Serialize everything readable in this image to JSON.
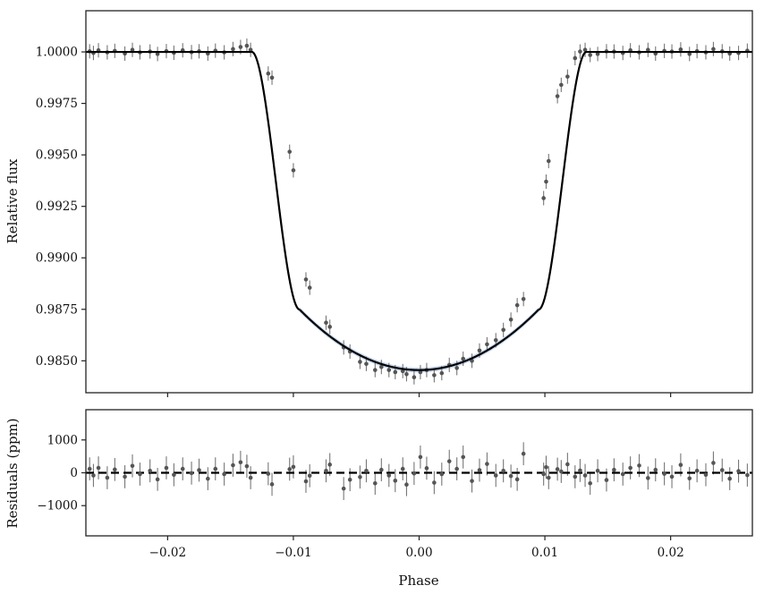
{
  "chart_data": [
    {
      "panel": "transit",
      "type": "line",
      "xlabel": "",
      "ylabel": "Relative flux",
      "xlim": [
        -0.0265,
        0.0265
      ],
      "ylim": [
        0.98345,
        1.002
      ],
      "xticks": [
        -0.02,
        -0.01,
        0.0,
        0.01,
        0.02
      ],
      "yticks": [
        0.985,
        0.9875,
        0.99,
        0.9925,
        0.995,
        0.9975,
        1.0
      ],
      "ytick_labels": [
        "0.9850",
        "0.9875",
        "0.9900",
        "0.9925",
        "0.9950",
        "0.9975",
        "1.0000"
      ],
      "grid": false,
      "model": {
        "transit_depth": 0.01545,
        "contact_1": 0.0133,
        "contact_2": 0.0095,
        "color": "#000000",
        "uncertainty_band_color": "#9db8e0"
      },
      "observations": {
        "color": "#555555",
        "typical_error": 0.00035,
        "x": [
          -0.0262,
          -0.0259,
          -0.0255,
          -0.0248,
          -0.0242,
          -0.0234,
          -0.0228,
          -0.0222,
          -0.0214,
          -0.0208,
          -0.0201,
          -0.0195,
          -0.0188,
          -0.0181,
          -0.0175,
          -0.0168,
          -0.0162,
          -0.0155,
          -0.0148,
          -0.0142,
          -0.0137,
          -0.0134,
          -0.012,
          -0.0117,
          -0.0103,
          -0.01,
          -0.009,
          -0.0087,
          -0.0074,
          -0.0071,
          -0.006,
          -0.0055,
          -0.0047,
          -0.0042,
          -0.0035,
          -0.003,
          -0.0024,
          -0.0019,
          -0.0013,
          -0.001,
          -0.0004,
          0.0001,
          0.0006,
          0.0012,
          0.0018,
          0.0024,
          0.003,
          0.0035,
          0.0042,
          0.0048,
          0.0054,
          0.0061,
          0.0067,
          0.0073,
          0.0078,
          0.0083,
          0.0099,
          0.0101,
          0.0103,
          0.011,
          0.0113,
          0.0118,
          0.0124,
          0.0128,
          0.0132,
          0.0136,
          0.0142,
          0.0149,
          0.0155,
          0.0162,
          0.0168,
          0.0175,
          0.0182,
          0.0188,
          0.0195,
          0.0201,
          0.0208,
          0.0215,
          0.0221,
          0.0228,
          0.0234,
          0.0241,
          0.0247,
          0.0254,
          0.0261
        ],
        "y": [
          1.00003,
          0.99995,
          1.00008,
          0.99998,
          1.00005,
          0.99992,
          1.0001,
          0.99998,
          1.00002,
          0.9999,
          1.00004,
          0.99996,
          1.00008,
          0.99999,
          1.00003,
          0.99992,
          1.00006,
          0.99998,
          1.00014,
          1.00024,
          1.0003,
          1.0001,
          0.99895,
          0.99875,
          0.99515,
          0.99425,
          0.98895,
          0.98855,
          0.98685,
          0.98665,
          0.98565,
          0.98545,
          0.98495,
          0.98485,
          0.98455,
          0.9847,
          0.98455,
          0.98445,
          0.9845,
          0.98435,
          0.9842,
          0.98445,
          0.98455,
          0.9843,
          0.9844,
          0.9848,
          0.98465,
          0.9851,
          0.985,
          0.9855,
          0.9858,
          0.986,
          0.9865,
          0.987,
          0.9877,
          0.988,
          0.9929,
          0.9937,
          0.9947,
          0.99785,
          0.9984,
          0.9988,
          0.9997,
          1.00002,
          1.0001,
          0.99985,
          0.9999,
          1.00003,
          1.00002,
          0.99995,
          1.00008,
          0.99998,
          1.0001,
          0.99992,
          1.00005,
          1.00002,
          1.00012,
          0.9999,
          1.00004,
          0.99998,
          1.00014,
          1.00003,
          0.99992,
          0.99995,
          1.00006
        ]
      }
    },
    {
      "panel": "residuals",
      "type": "scatter",
      "xlabel": "Phase",
      "ylabel": "Residuals (ppm)",
      "xlim": [
        -0.0265,
        0.0265
      ],
      "ylim": [
        -1920,
        1920
      ],
      "xticks": [
        -0.02,
        -0.01,
        0.0,
        0.01,
        0.02
      ],
      "xtick_labels": [
        "−0.02",
        "−0.01",
        "0.00",
        "0.01",
        "0.02"
      ],
      "yticks": [
        1000,
        0,
        -1000
      ],
      "ytick_labels": [
        "1000",
        "0",
        "−1000"
      ],
      "grid": false,
      "zero_line_color": "#000000",
      "observations": {
        "color": "#555555",
        "typical_error": 350,
        "x": [
          -0.0262,
          -0.0259,
          -0.0255,
          -0.0248,
          -0.0242,
          -0.0234,
          -0.0228,
          -0.0222,
          -0.0214,
          -0.0208,
          -0.0201,
          -0.0195,
          -0.0188,
          -0.0181,
          -0.0175,
          -0.0168,
          -0.0162,
          -0.0155,
          -0.0148,
          -0.0142,
          -0.0137,
          -0.0134,
          -0.012,
          -0.0117,
          -0.0103,
          -0.01,
          -0.009,
          -0.0087,
          -0.0074,
          -0.0071,
          -0.006,
          -0.0055,
          -0.0047,
          -0.0042,
          -0.0035,
          -0.003,
          -0.0024,
          -0.0019,
          -0.0013,
          -0.001,
          -0.0004,
          0.0001,
          0.0006,
          0.0012,
          0.0018,
          0.0024,
          0.003,
          0.0035,
          0.0042,
          0.0048,
          0.0054,
          0.0061,
          0.0067,
          0.0073,
          0.0078,
          0.0083,
          0.0099,
          0.0101,
          0.0103,
          0.011,
          0.0113,
          0.0118,
          0.0124,
          0.0128,
          0.0132,
          0.0136,
          0.0142,
          0.0149,
          0.0155,
          0.0162,
          0.0168,
          0.0175,
          0.0182,
          0.0188,
          0.0195,
          0.0201,
          0.0208,
          0.0215,
          0.0221,
          0.0228,
          0.0234,
          0.0241,
          0.0247,
          0.0254,
          0.0261
        ],
        "y": [
          120,
          -80,
          150,
          -150,
          100,
          -120,
          210,
          -40,
          60,
          -200,
          150,
          -60,
          120,
          -10,
          80,
          -180,
          120,
          -40,
          230,
          320,
          200,
          -150,
          -30,
          -350,
          110,
          180,
          -260,
          -90,
          60,
          250,
          -480,
          -210,
          -130,
          60,
          -320,
          90,
          -80,
          -240,
          120,
          -360,
          -20,
          480,
          140,
          -300,
          -40,
          350,
          120,
          480,
          -250,
          80,
          270,
          -80,
          60,
          -100,
          -200,
          580,
          -40,
          170,
          -150,
          110,
          40,
          260,
          -120,
          70,
          -80,
          -320,
          60,
          -220,
          90,
          -40,
          150,
          220,
          -160,
          90,
          -30,
          -120,
          240,
          -170,
          60,
          -60,
          300,
          80,
          -180,
          50,
          -70
        ]
      }
    }
  ]
}
